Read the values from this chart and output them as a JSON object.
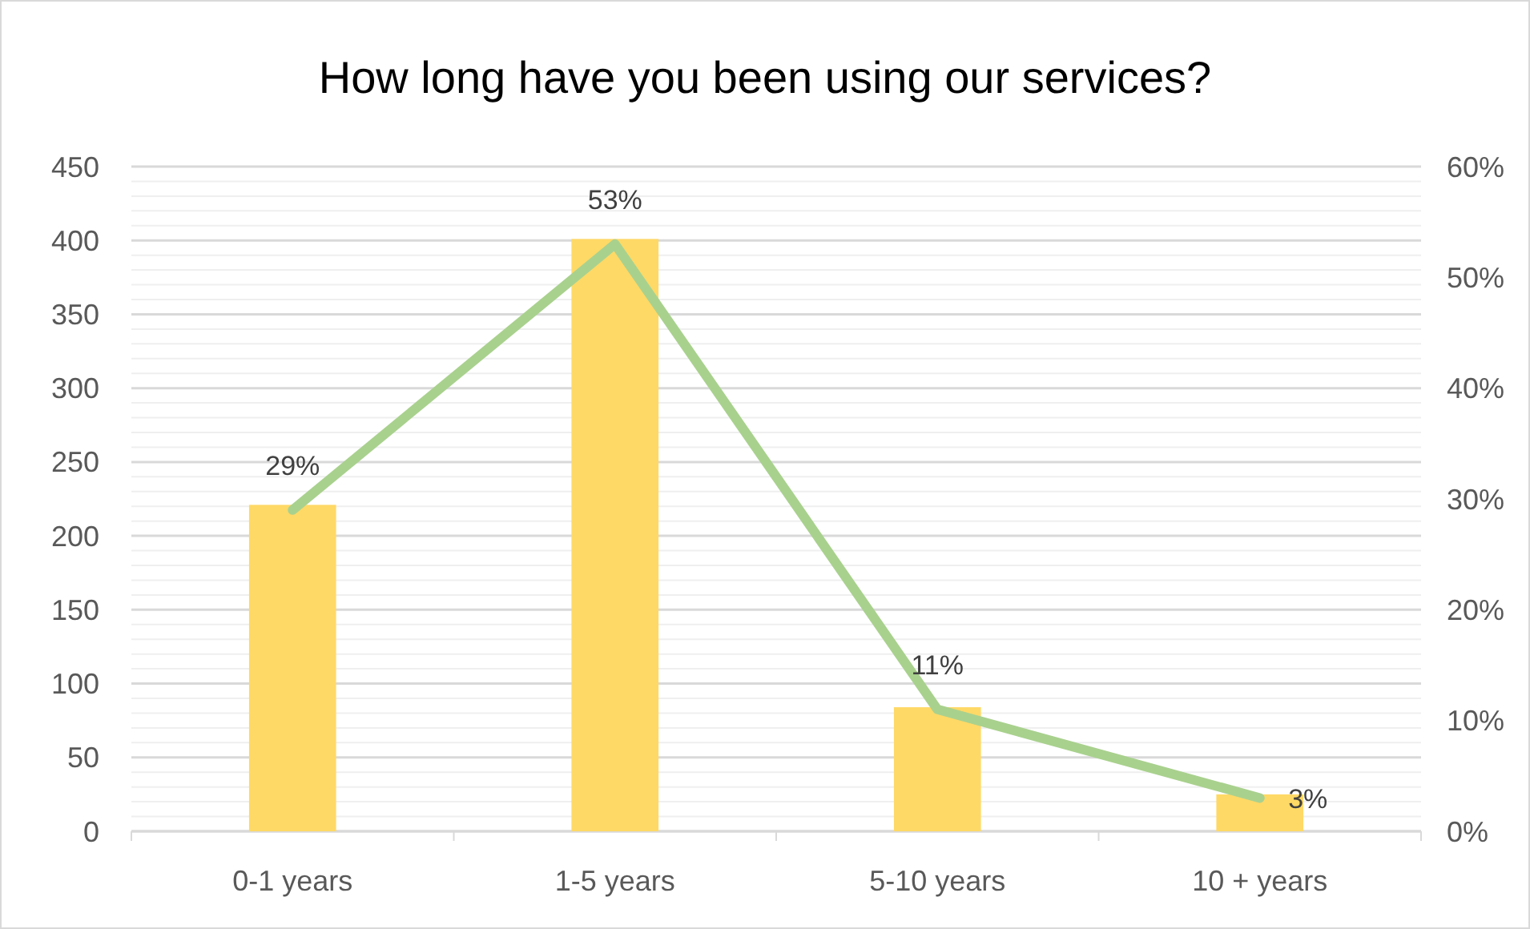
{
  "chart_data": {
    "type": "bar",
    "title": "How long have you been using our services?",
    "categories": [
      "0-1 years",
      "1-5 years",
      "5-10 years",
      "10 + years"
    ],
    "series": [
      {
        "color": "#ffd966",
        "values": [
          221,
          401,
          84,
          25
        ]
      },
      {
        "type": "line",
        "axis": "y2",
        "color": "#a9d18e",
        "values": [
          29,
          53,
          11,
          3
        ],
        "value_labels": [
          "29%",
          "53%",
          "11%",
          "3%"
        ]
      }
    ],
    "ylim": [
      0,
      450
    ],
    "yticks": [
      0,
      {
        "value": 10,
        "label": null
      },
      {
        "value": 20,
        "label": null
      },
      {
        "value": 30,
        "label": null
      },
      {
        "value": 40,
        "label": null
      },
      50,
      {
        "value": 60,
        "label": null
      },
      {
        "value": 70,
        "label": null
      },
      {
        "value": 80,
        "label": null
      },
      {
        "value": 90,
        "label": null
      },
      100,
      {
        "value": 110,
        "label": null
      },
      {
        "value": 120,
        "label": null
      },
      {
        "value": 130,
        "label": null
      },
      {
        "value": 140,
        "label": null
      },
      150,
      {
        "value": 160,
        "label": null
      },
      {
        "value": 170,
        "label": null
      },
      {
        "value": 180,
        "label": null
      },
      {
        "value": 190,
        "label": null
      },
      200,
      {
        "value": 210,
        "label": null
      },
      {
        "value": 220,
        "label": null
      },
      {
        "value": 230,
        "label": null
      },
      {
        "value": 240,
        "label": null
      },
      250,
      {
        "value": 260,
        "label": null
      },
      {
        "value": 270,
        "label": null
      },
      {
        "value": 280,
        "label": null
      },
      {
        "value": 290,
        "label": null
      },
      300,
      {
        "value": 310,
        "label": null
      },
      {
        "value": 320,
        "label": null
      },
      {
        "value": 330,
        "label": null
      },
      {
        "value": 340,
        "label": null
      },
      350,
      {
        "value": 360,
        "label": null
      },
      {
        "value": 370,
        "label": null
      },
      {
        "value": 380,
        "label": null
      },
      {
        "value": 390,
        "label": null
      },
      400,
      {
        "value": 410,
        "label": null
      },
      {
        "value": 420,
        "label": null
      },
      {
        "value": 430,
        "label": null
      },
      {
        "value": 440,
        "label": null
      },
      450
    ],
    "y2lim": [
      0,
      60
    ],
    "y2ticks": [
      {
        "value": 0,
        "label": "0%"
      },
      {
        "value": 10,
        "label": "10%"
      },
      {
        "value": 20,
        "label": "20%"
      },
      {
        "value": 30,
        "label": "30%"
      },
      {
        "value": 40,
        "label": "40%"
      },
      {
        "value": 50,
        "label": "50%"
      },
      {
        "value": 60,
        "label": "60%"
      }
    ],
    "grid": "y",
    "line_style": "solid",
    "marker": "none"
  }
}
